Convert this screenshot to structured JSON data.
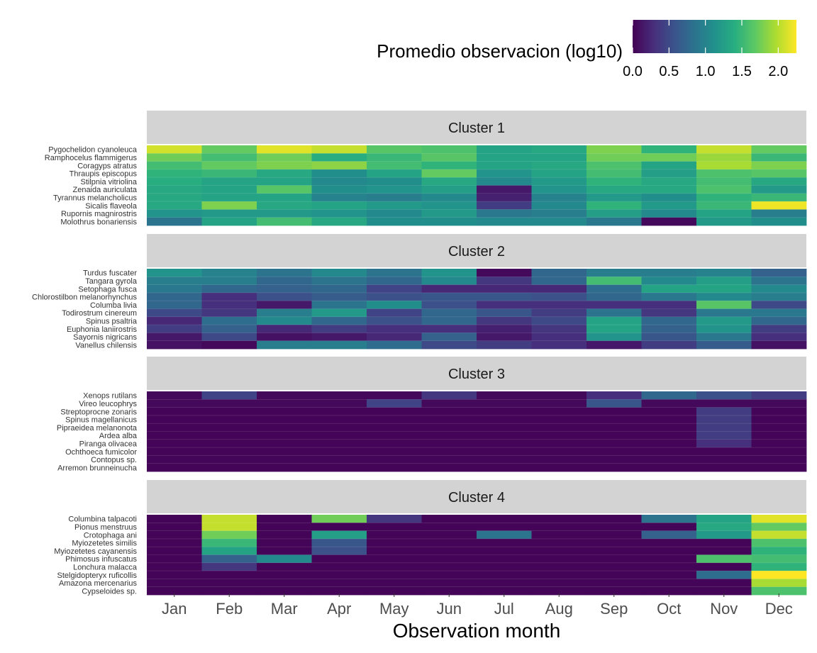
{
  "chart_data": {
    "type": "heatmap",
    "xlabel": "Observation month",
    "months": [
      "Jan",
      "Feb",
      "Mar",
      "Apr",
      "May",
      "Jun",
      "Jul",
      "Aug",
      "Sep",
      "Oct",
      "Nov",
      "Dec"
    ],
    "legend": {
      "title": "Promedio  observacion (log10)",
      "ticks": [
        "0.0",
        "0.5",
        "1.0",
        "1.5",
        "2.0"
      ],
      "tick_values": [
        0,
        0.5,
        1.0,
        1.5,
        2.0
      ],
      "range": [
        0,
        2.25
      ],
      "placement": "top-right",
      "palette": "viridis"
    },
    "panels": [
      {
        "title": "Cluster 1",
        "rows": [
          {
            "species": "Pygochelidon cyanoleuca",
            "values": [
              2.1,
              1.7,
              2.15,
              2.05,
              1.65,
              1.6,
              1.3,
              1.35,
              1.8,
              1.45,
              2.05,
              1.7
            ]
          },
          {
            "species": "Ramphocelus flammigerus",
            "values": [
              1.75,
              1.55,
              1.75,
              1.4,
              1.5,
              1.65,
              1.3,
              1.3,
              1.75,
              1.75,
              1.9,
              1.5
            ]
          },
          {
            "species": "Coragyps atratus",
            "values": [
              1.55,
              1.7,
              1.8,
              1.85,
              1.55,
              1.45,
              1.3,
              1.35,
              1.6,
              1.3,
              1.95,
              1.8
            ]
          },
          {
            "species": "Thraupis episcopus",
            "values": [
              1.45,
              1.5,
              1.35,
              1.1,
              1.3,
              1.7,
              1.15,
              1.3,
              1.55,
              1.25,
              1.6,
              1.65
            ]
          },
          {
            "species": "Stilpnia vitriolina",
            "values": [
              1.4,
              1.3,
              1.3,
              1.05,
              1.1,
              1.35,
              1.05,
              1.2,
              1.45,
              1.35,
              1.55,
              1.35
            ]
          },
          {
            "species": "Zenaida auriculata",
            "values": [
              1.35,
              1.3,
              1.65,
              1.1,
              1.15,
              1.25,
              0.15,
              1.15,
              1.35,
              1.35,
              1.6,
              1.2
            ]
          },
          {
            "species": "Tyrannus melancholicus",
            "values": [
              1.35,
              1.3,
              1.3,
              1.0,
              0.95,
              1.05,
              0.2,
              1.0,
              1.2,
              1.1,
              1.45,
              1.5
            ]
          },
          {
            "species": "Sicalis flaveola",
            "values": [
              1.35,
              1.8,
              1.35,
              1.3,
              1.2,
              1.15,
              0.4,
              1.05,
              1.45,
              1.2,
              1.5,
              2.2
            ]
          },
          {
            "species": "Rupornis magnirostris",
            "values": [
              1.15,
              1.2,
              1.2,
              1.15,
              1.05,
              1.2,
              0.9,
              0.95,
              1.25,
              1.05,
              1.3,
              0.95
            ]
          },
          {
            "species": "Molothrus bonariensis",
            "values": [
              0.85,
              1.3,
              1.55,
              1.35,
              1.1,
              1.1,
              1.05,
              1.05,
              0.9,
              0.05,
              1.2,
              1.1
            ]
          }
        ]
      },
      {
        "title": "Cluster 2",
        "rows": [
          {
            "species": "Turdus fuscater",
            "values": [
              1.15,
              1.0,
              0.85,
              1.05,
              0.85,
              1.15,
              0.05,
              0.75,
              0.95,
              0.95,
              1.0,
              0.7
            ]
          },
          {
            "species": "Tangara gyrola",
            "values": [
              0.95,
              0.95,
              0.75,
              0.85,
              0.75,
              1.05,
              0.35,
              0.75,
              1.55,
              1.05,
              1.25,
              0.85
            ]
          },
          {
            "species": "Setophaga fusca",
            "values": [
              0.9,
              0.75,
              0.7,
              0.75,
              0.45,
              0.25,
              0.25,
              0.25,
              0.8,
              1.3,
              1.3,
              1.05
            ]
          },
          {
            "species": "Chlorostilbon melanorhynchus",
            "values": [
              0.75,
              0.3,
              0.55,
              0.65,
              0.55,
              0.6,
              0.6,
              0.55,
              0.75,
              0.9,
              1.05,
              0.95
            ]
          },
          {
            "species": "Columba livia",
            "values": [
              0.75,
              0.3,
              0.15,
              0.85,
              1.1,
              0.55,
              0.3,
              0.3,
              0.3,
              0.3,
              1.65,
              0.5
            ]
          },
          {
            "species": "Todirostrum cinereum",
            "values": [
              0.5,
              0.35,
              0.95,
              1.2,
              0.45,
              0.75,
              0.6,
              0.4,
              0.85,
              0.35,
              0.9,
              0.9
            ]
          },
          {
            "species": "Spinus psaltria",
            "values": [
              0.25,
              0.8,
              1.05,
              0.75,
              0.55,
              0.75,
              0.35,
              0.5,
              1.3,
              0.75,
              1.2,
              0.75
            ]
          },
          {
            "species": "Euphonia laniirostris",
            "values": [
              0.4,
              0.7,
              0.25,
              0.4,
              0.3,
              0.3,
              0.2,
              0.35,
              1.3,
              0.7,
              1.15,
              0.4
            ]
          },
          {
            "species": "Sayornis nigricans",
            "values": [
              0.15,
              0.5,
              0.1,
              0.15,
              0.25,
              0.7,
              0.15,
              0.3,
              1.15,
              0.6,
              0.9,
              0.3
            ]
          },
          {
            "species": "Vanellus chilensis",
            "values": [
              0.1,
              0.05,
              0.95,
              0.95,
              0.8,
              0.5,
              0.4,
              0.3,
              0.15,
              0.4,
              0.65,
              0.1
            ]
          }
        ]
      },
      {
        "title": "Cluster 3",
        "rows": [
          {
            "species": "Xenops rutilans",
            "values": [
              0.05,
              0.45,
              0.05,
              0.05,
              0.05,
              0.35,
              0.05,
              0.05,
              0.3,
              0.75,
              0.55,
              0.4
            ]
          },
          {
            "species": "Vireo leucophrys",
            "values": [
              0.05,
              0.05,
              0.05,
              0.05,
              0.45,
              0.05,
              0.05,
              0.05,
              0.6,
              0.05,
              0.05,
              0.05
            ]
          },
          {
            "species": "Streptoprocne zonaris",
            "values": [
              0.02,
              0.02,
              0.02,
              0.02,
              0.02,
              0.02,
              0.02,
              0.02,
              0.02,
              0.02,
              0.4,
              0.02
            ]
          },
          {
            "species": "Spinus magellanicus",
            "values": [
              0.02,
              0.02,
              0.02,
              0.02,
              0.02,
              0.02,
              0.02,
              0.02,
              0.02,
              0.02,
              0.4,
              0.02
            ]
          },
          {
            "species": "Pipraeidea melanonota",
            "values": [
              0.02,
              0.02,
              0.02,
              0.02,
              0.02,
              0.02,
              0.02,
              0.02,
              0.02,
              0.02,
              0.4,
              0.02
            ]
          },
          {
            "species": "Ardea alba",
            "values": [
              0.02,
              0.02,
              0.02,
              0.02,
              0.02,
              0.02,
              0.02,
              0.02,
              0.02,
              0.02,
              0.4,
              0.02
            ]
          },
          {
            "species": "Piranga olivacea",
            "values": [
              0.02,
              0.02,
              0.02,
              0.02,
              0.02,
              0.02,
              0.02,
              0.02,
              0.02,
              0.02,
              0.3,
              0.02
            ]
          },
          {
            "species": "Ochthoeca fumicolor",
            "values": [
              0.02,
              0.02,
              0.02,
              0.02,
              0.02,
              0.02,
              0.02,
              0.02,
              0.02,
              0.02,
              0.02,
              0.02
            ]
          },
          {
            "species": "Contopus sp.",
            "values": [
              0.02,
              0.02,
              0.02,
              0.02,
              0.02,
              0.02,
              0.02,
              0.02,
              0.02,
              0.02,
              0.02,
              0.02
            ]
          },
          {
            "species": "Arremon brunneinucha",
            "values": [
              0.02,
              0.02,
              0.02,
              0.02,
              0.02,
              0.02,
              0.02,
              0.02,
              0.02,
              0.02,
              0.02,
              0.02
            ]
          }
        ]
      },
      {
        "title": "Cluster 4",
        "rows": [
          {
            "species": "Columbina talpacoti",
            "values": [
              0.02,
              2.05,
              0.02,
              1.75,
              0.35,
              0.02,
              0.02,
              0.02,
              0.02,
              0.85,
              1.3,
              2.15
            ]
          },
          {
            "species": "Pionus menstruus",
            "values": [
              0.02,
              2.05,
              0.02,
              0.02,
              0.02,
              0.02,
              0.02,
              0.02,
              0.02,
              0.02,
              1.35,
              1.7
            ]
          },
          {
            "species": "Crotophaga ani",
            "values": [
              0.02,
              1.75,
              0.02,
              1.25,
              0.02,
              0.02,
              0.85,
              0.02,
              0.02,
              0.7,
              1.2,
              2.05
            ]
          },
          {
            "species": "Myiozetetes similis",
            "values": [
              0.02,
              1.5,
              0.02,
              0.6,
              0.02,
              0.02,
              0.02,
              0.02,
              0.02,
              0.02,
              0.02,
              1.6
            ]
          },
          {
            "species": "Myiozetetes cayanensis",
            "values": [
              0.02,
              1.3,
              0.02,
              0.55,
              0.02,
              0.02,
              0.02,
              0.02,
              0.02,
              0.02,
              0.02,
              1.45
            ]
          },
          {
            "species": "Phimosus infuscatus",
            "values": [
              0.02,
              0.7,
              1.05,
              0.02,
              0.02,
              0.02,
              0.02,
              0.02,
              0.02,
              0.02,
              1.6,
              1.55
            ]
          },
          {
            "species": "Lonchura malacca",
            "values": [
              0.02,
              0.35,
              0.02,
              0.02,
              0.02,
              0.02,
              0.02,
              0.02,
              0.02,
              0.02,
              0.02,
              1.45
            ]
          },
          {
            "species": "Stelgidopteryx ruficollis",
            "values": [
              0.02,
              0.02,
              0.02,
              0.02,
              0.02,
              0.02,
              0.02,
              0.02,
              0.02,
              0.02,
              0.8,
              2.25
            ]
          },
          {
            "species": "Amazona mercenarius",
            "values": [
              0.02,
              0.02,
              0.02,
              0.02,
              0.02,
              0.02,
              0.02,
              0.02,
              0.02,
              0.02,
              0.02,
              1.95
            ]
          },
          {
            "species": "Cypseloides sp.",
            "values": [
              0.02,
              0.02,
              0.02,
              0.02,
              0.02,
              0.02,
              0.02,
              0.02,
              0.02,
              0.02,
              0.02,
              1.6
            ]
          }
        ]
      }
    ]
  }
}
